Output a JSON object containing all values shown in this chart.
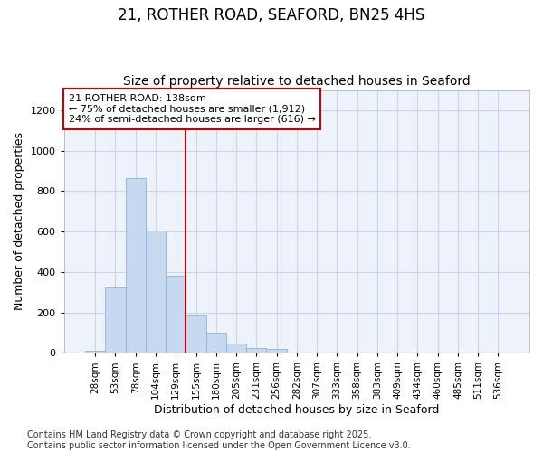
{
  "title": "21, ROTHER ROAD, SEAFORD, BN25 4HS",
  "subtitle": "Size of property relative to detached houses in Seaford",
  "xlabel": "Distribution of detached houses by size in Seaford",
  "ylabel": "Number of detached properties",
  "categories": [
    "28sqm",
    "53sqm",
    "78sqm",
    "104sqm",
    "129sqm",
    "155sqm",
    "180sqm",
    "205sqm",
    "231sqm",
    "256sqm",
    "282sqm",
    "307sqm",
    "333sqm",
    "358sqm",
    "383sqm",
    "409sqm",
    "434sqm",
    "460sqm",
    "485sqm",
    "511sqm",
    "536sqm"
  ],
  "values": [
    10,
    325,
    865,
    605,
    380,
    185,
    100,
    45,
    25,
    20,
    0,
    0,
    0,
    0,
    0,
    0,
    0,
    0,
    0,
    0,
    0
  ],
  "bar_color": "#c6d9f0",
  "bar_edge_color": "#8ab4d8",
  "grid_color": "#c8d4e8",
  "background_color": "#eef2fa",
  "plot_bg_color": "#eef2fa",
  "ylim": [
    0,
    1300
  ],
  "yticks": [
    0,
    200,
    400,
    600,
    800,
    1000,
    1200
  ],
  "annotation_box_color": "#cc0000",
  "vline_x": 4.5,
  "annotation_title": "21 ROTHER ROAD: 138sqm",
  "annotation_line1": "← 75% of detached houses are smaller (1,912)",
  "annotation_line2": "24% of semi-detached houses are larger (616) →",
  "footer_line1": "Contains HM Land Registry data © Crown copyright and database right 2025.",
  "footer_line2": "Contains public sector information licensed under the Open Government Licence v3.0.",
  "title_fontsize": 12,
  "subtitle_fontsize": 10,
  "axis_label_fontsize": 9,
  "tick_fontsize": 7.5,
  "annotation_fontsize": 8,
  "footer_fontsize": 7
}
